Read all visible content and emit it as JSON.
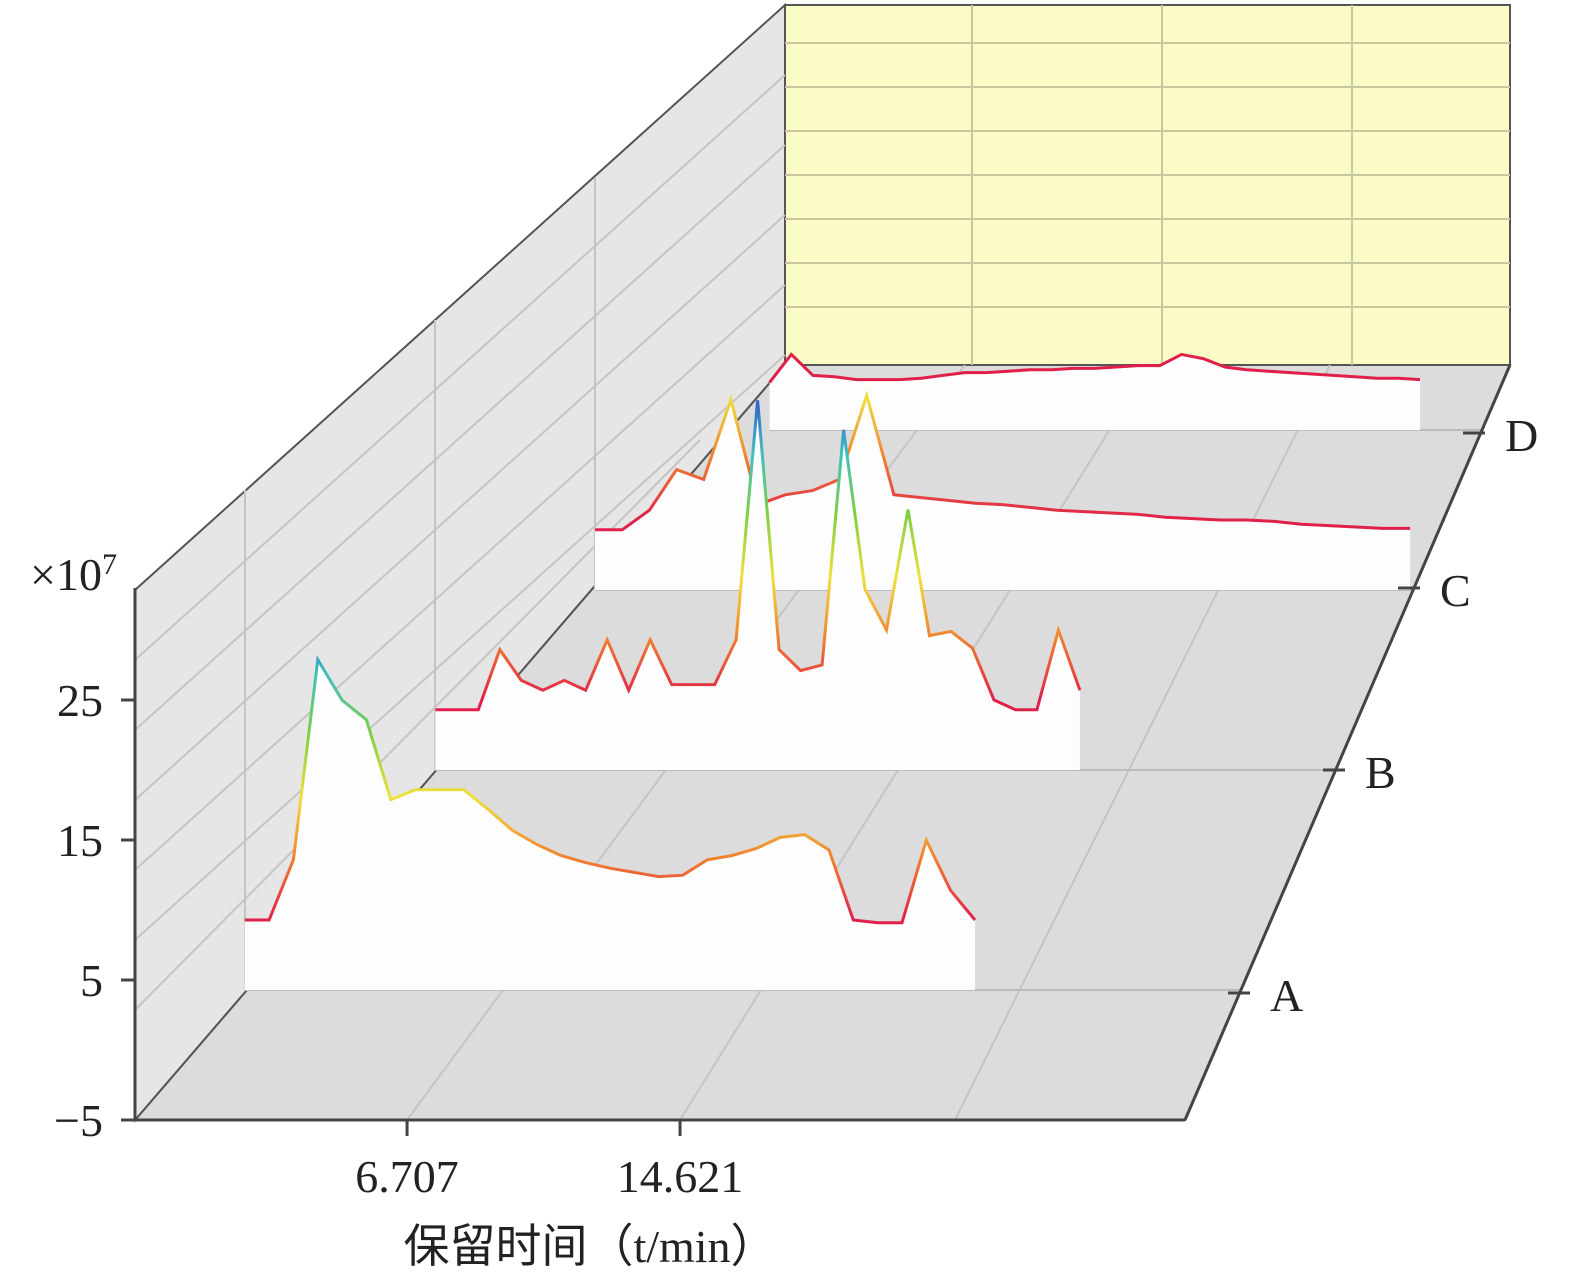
{
  "chart_data": {
    "type": "waterfall3d",
    "y_multiplier": "×10",
    "y_multiplier_exponent": "7",
    "x_label": "保留时间（t/min）",
    "xlim": [
      -1.18,
      29.26
    ],
    "xticks": [
      6.707,
      14.621
    ],
    "ylim": [
      -5,
      33
    ],
    "yticks": [
      {
        "value": -5,
        "label": "−5"
      },
      5,
      15,
      25
    ],
    "colormap": [
      "#e0204a",
      "#f08030",
      "#f0e040",
      "#80d040",
      "#40c0c0",
      "#3050d0"
    ],
    "x": [
      0,
      1,
      2,
      3,
      4,
      5,
      6,
      7,
      8,
      9,
      10,
      11,
      12,
      13,
      14,
      15,
      16,
      17,
      18,
      19,
      20,
      21,
      22,
      23,
      24,
      25,
      26,
      27,
      28,
      29,
      30
    ],
    "series": [
      {
        "name": "A",
        "values": [
          0,
          0,
          4.3,
          18.6,
          15.7,
          14.3,
          8.6,
          9.3,
          9.3,
          9.3,
          7.9,
          6.4,
          5.4,
          4.6,
          4.1,
          3.7,
          3.4,
          3.1,
          3.2,
          4.3,
          4.6,
          5.1,
          5.9,
          6.1,
          5.0,
          0,
          -0.2,
          -0.2,
          5.7,
          2.1,
          0
        ]
      },
      {
        "name": "B",
        "values": [
          -0.7,
          -0.7,
          -0.7,
          3.6,
          1.4,
          0.7,
          1.4,
          0.7,
          4.3,
          0.7,
          4.3,
          1.1,
          1.1,
          1.1,
          4.3,
          21.4,
          3.6,
          2.1,
          2.5,
          19.3,
          7.9,
          5.0,
          13.6,
          4.6,
          4.9,
          3.7,
          0,
          -0.7,
          -0.7,
          5.0,
          0.7
        ]
      },
      {
        "name": "C",
        "values": [
          -0.7,
          -0.7,
          0.7,
          3.6,
          2.9,
          8.6,
          1.1,
          1.8,
          2.1,
          2.9,
          8.9,
          1.8,
          1.6,
          1.4,
          1.2,
          1.1,
          0.9,
          0.7,
          0.6,
          0.5,
          0.4,
          0.2,
          0.1,
          0,
          0,
          -0.1,
          -0.3,
          -0.4,
          -0.5,
          -0.6,
          -0.6
        ]
      },
      {
        "name": "D",
        "values": [
          -1.6,
          0.4,
          -1.1,
          -1.2,
          -1.4,
          -1.4,
          -1.4,
          -1.3,
          -1.1,
          -0.9,
          -0.9,
          -0.8,
          -0.7,
          -0.7,
          -0.6,
          -0.6,
          -0.5,
          -0.4,
          -0.4,
          0.4,
          0.1,
          -0.5,
          -0.7,
          -0.8,
          -0.9,
          -1.0,
          -1.1,
          -1.2,
          -1.3,
          -1.3,
          -1.4
        ]
      }
    ]
  }
}
